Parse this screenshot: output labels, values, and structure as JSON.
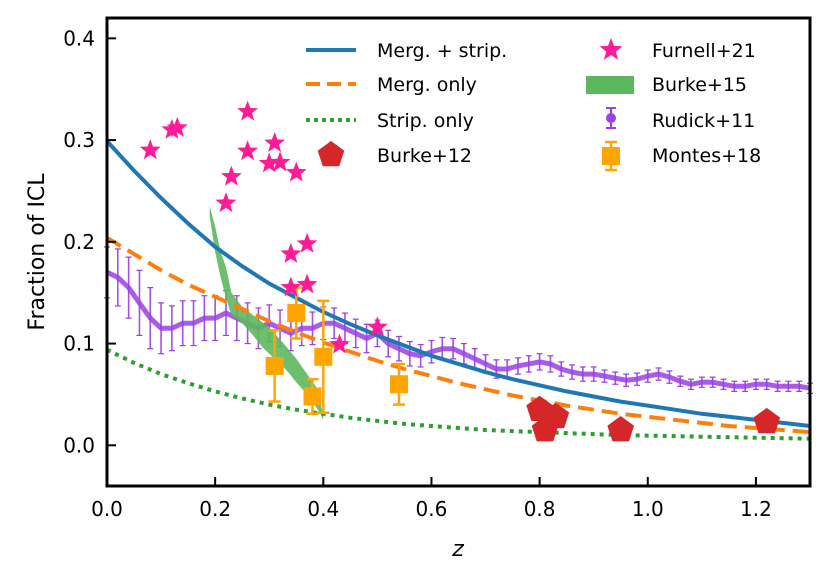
{
  "chart_data": {
    "type": "line",
    "xlabel": "z",
    "ylabel": "Fraction of ICL",
    "xlim": [
      0.0,
      1.3
    ],
    "ylim": [
      -0.04,
      0.42
    ],
    "xticks": [
      0.0,
      0.2,
      0.4,
      0.6,
      0.8,
      1.0,
      1.2
    ],
    "xtick_labels": [
      "0.0",
      "0.2",
      "0.4",
      "0.6",
      "0.8",
      "1.0",
      "1.2"
    ],
    "yticks": [
      0.0,
      0.1,
      0.2,
      0.3,
      0.4
    ],
    "ytick_labels": [
      "0.0",
      "0.1",
      "0.2",
      "0.3",
      "0.4"
    ],
    "legend_position": "top-right",
    "colors": {
      "merg_strip": "#1f77b4",
      "merg_only": "#ff7f0e",
      "strip_only": "#2ca02c",
      "burke12": "#d62728",
      "furnell21": "#ff1c96",
      "burke15": "#5cb85c",
      "rudick11": "#9a3ee6",
      "montes18": "#ffa500"
    },
    "series": [
      {
        "name": "Merg. + strip.",
        "style": "solid",
        "x": [
          0.0,
          0.05,
          0.1,
          0.15,
          0.2,
          0.25,
          0.3,
          0.35,
          0.4,
          0.45,
          0.5,
          0.55,
          0.6,
          0.65,
          0.7,
          0.75,
          0.8,
          0.85,
          0.9,
          0.95,
          1.0,
          1.05,
          1.1,
          1.15,
          1.2,
          1.25,
          1.3
        ],
        "y": [
          0.299,
          0.27,
          0.243,
          0.218,
          0.195,
          0.176,
          0.159,
          0.145,
          0.131,
          0.119,
          0.108,
          0.098,
          0.088,
          0.08,
          0.072,
          0.065,
          0.059,
          0.053,
          0.048,
          0.043,
          0.039,
          0.035,
          0.031,
          0.028,
          0.025,
          0.022,
          0.019
        ]
      },
      {
        "name": "Merg. only",
        "style": "dashed",
        "x": [
          0.0,
          0.05,
          0.1,
          0.15,
          0.2,
          0.25,
          0.3,
          0.35,
          0.4,
          0.45,
          0.5,
          0.55,
          0.6,
          0.65,
          0.7,
          0.75,
          0.8,
          0.85,
          0.9,
          0.95,
          1.0,
          1.05,
          1.1,
          1.15,
          1.2,
          1.25,
          1.3
        ],
        "y": [
          0.204,
          0.188,
          0.172,
          0.158,
          0.146,
          0.134,
          0.122,
          0.111,
          0.101,
          0.092,
          0.083,
          0.075,
          0.068,
          0.061,
          0.055,
          0.049,
          0.044,
          0.039,
          0.035,
          0.031,
          0.028,
          0.025,
          0.022,
          0.019,
          0.017,
          0.015,
          0.013
        ]
      },
      {
        "name": "Strip. only",
        "style": "dotted",
        "x": [
          0.0,
          0.05,
          0.1,
          0.15,
          0.2,
          0.25,
          0.3,
          0.35,
          0.4,
          0.45,
          0.5,
          0.55,
          0.6,
          0.65,
          0.7,
          0.75,
          0.8,
          0.85,
          0.9,
          0.95,
          1.0,
          1.05,
          1.1,
          1.15,
          1.2,
          1.25,
          1.3
        ],
        "y": [
          0.094,
          0.081,
          0.07,
          0.061,
          0.053,
          0.046,
          0.04,
          0.035,
          0.031,
          0.027,
          0.024,
          0.021,
          0.019,
          0.017,
          0.015,
          0.014,
          0.013,
          0.012,
          0.011,
          0.01,
          0.0095,
          0.009,
          0.0085,
          0.008,
          0.0075,
          0.007,
          0.0065
        ]
      }
    ],
    "burke12": {
      "name": "Burke+12",
      "marker": "pentagon",
      "x": [
        0.8,
        0.81,
        0.83,
        0.95,
        1.22
      ],
      "y": [
        0.035,
        0.015,
        0.028,
        0.015,
        0.023
      ]
    },
    "furnell21": {
      "name": "Furnell+21",
      "marker": "star",
      "x": [
        0.08,
        0.12,
        0.13,
        0.22,
        0.23,
        0.26,
        0.26,
        0.3,
        0.31,
        0.32,
        0.35,
        0.34,
        0.37,
        0.37,
        0.34,
        0.43,
        0.5
      ],
      "y": [
        0.29,
        0.31,
        0.312,
        0.238,
        0.264,
        0.328,
        0.289,
        0.277,
        0.297,
        0.278,
        0.268,
        0.188,
        0.198,
        0.158,
        0.155,
        0.099,
        0.116
      ]
    },
    "montes18": {
      "name": "Montes+18",
      "marker": "square",
      "x": [
        0.31,
        0.35,
        0.38,
        0.4,
        0.54
      ],
      "y": [
        0.078,
        0.13,
        0.048,
        0.087,
        0.06
      ],
      "yerr": [
        0.035,
        0.025,
        0.017,
        0.055,
        0.02
      ]
    },
    "burke15": {
      "name": "Burke+15",
      "x": [
        0.19,
        0.2,
        0.21,
        0.22,
        0.23,
        0.25,
        0.27,
        0.29,
        0.31,
        0.33,
        0.35,
        0.37,
        0.39,
        0.4
      ],
      "upper": [
        0.235,
        0.215,
        0.19,
        0.175,
        0.15,
        0.136,
        0.128,
        0.12,
        0.11,
        0.098,
        0.085,
        0.07,
        0.055,
        0.028
      ],
      "lower": [
        0.225,
        0.19,
        0.165,
        0.145,
        0.128,
        0.12,
        0.108,
        0.095,
        0.085,
        0.075,
        0.062,
        0.05,
        0.035,
        0.025
      ]
    },
    "rudick11": {
      "name": "Rudick+11",
      "x": [
        0.0,
        0.02,
        0.04,
        0.06,
        0.08,
        0.1,
        0.12,
        0.14,
        0.16,
        0.18,
        0.2,
        0.22,
        0.24,
        0.26,
        0.28,
        0.3,
        0.32,
        0.34,
        0.36,
        0.38,
        0.4,
        0.42,
        0.44,
        0.46,
        0.48,
        0.5,
        0.52,
        0.54,
        0.56,
        0.58,
        0.6,
        0.62,
        0.64,
        0.66,
        0.68,
        0.7,
        0.72,
        0.74,
        0.76,
        0.78,
        0.8,
        0.82,
        0.84,
        0.86,
        0.88,
        0.9,
        0.92,
        0.94,
        0.96,
        0.98,
        1.0,
        1.02,
        1.04,
        1.06,
        1.08,
        1.1,
        1.12,
        1.14,
        1.16,
        1.18,
        1.2,
        1.22,
        1.24,
        1.26,
        1.28,
        1.3
      ],
      "y": [
        0.17,
        0.165,
        0.155,
        0.14,
        0.125,
        0.115,
        0.115,
        0.12,
        0.12,
        0.125,
        0.125,
        0.13,
        0.125,
        0.12,
        0.115,
        0.12,
        0.115,
        0.11,
        0.115,
        0.115,
        0.12,
        0.12,
        0.115,
        0.11,
        0.105,
        0.11,
        0.1,
        0.095,
        0.09,
        0.088,
        0.092,
        0.095,
        0.095,
        0.09,
        0.085,
        0.08,
        0.075,
        0.075,
        0.078,
        0.08,
        0.082,
        0.08,
        0.075,
        0.072,
        0.07,
        0.07,
        0.068,
        0.066,
        0.064,
        0.065,
        0.068,
        0.07,
        0.067,
        0.063,
        0.06,
        0.062,
        0.062,
        0.06,
        0.058,
        0.058,
        0.06,
        0.06,
        0.058,
        0.058,
        0.058,
        0.056
      ],
      "err": [
        0.025,
        0.028,
        0.03,
        0.032,
        0.03,
        0.025,
        0.022,
        0.022,
        0.022,
        0.022,
        0.022,
        0.022,
        0.022,
        0.02,
        0.02,
        0.018,
        0.018,
        0.017,
        0.017,
        0.016,
        0.016,
        0.015,
        0.015,
        0.014,
        0.014,
        0.013,
        0.013,
        0.012,
        0.012,
        0.011,
        0.011,
        0.011,
        0.01,
        0.01,
        0.01,
        0.009,
        0.009,
        0.009,
        0.008,
        0.008,
        0.008,
        0.008,
        0.007,
        0.007,
        0.007,
        0.007,
        0.006,
        0.006,
        0.006,
        0.006,
        0.006,
        0.006,
        0.006,
        0.005,
        0.005,
        0.005,
        0.005,
        0.005,
        0.005,
        0.005,
        0.005,
        0.005,
        0.005,
        0.005,
        0.005,
        0.005
      ]
    },
    "legend": {
      "col1": [
        "Merg. + strip.",
        "Merg. only",
        "Strip. only",
        "Burke+12"
      ],
      "col2": [
        "Furnell+21",
        "Burke+15",
        "Rudick+11",
        "Montes+18"
      ]
    }
  }
}
